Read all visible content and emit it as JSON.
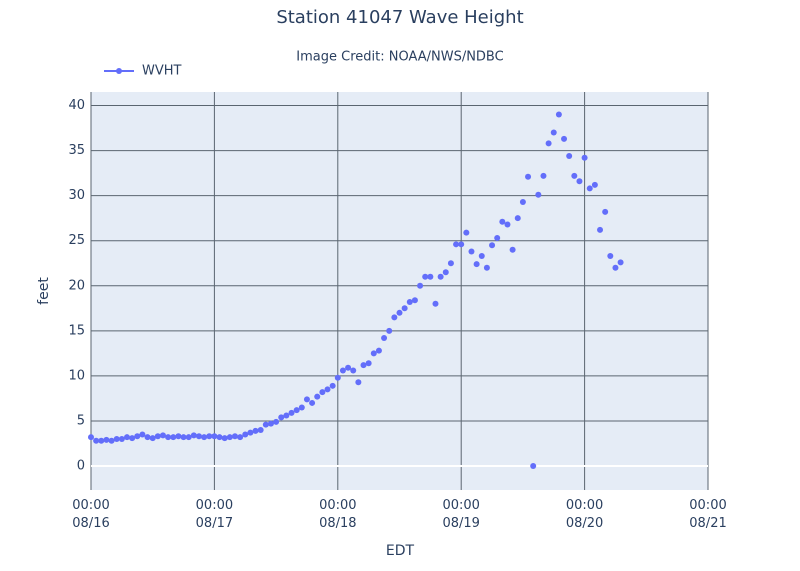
{
  "chart_data": {
    "type": "scatter",
    "title": "Station 41047 Wave Height",
    "subtitle": "Image Credit: NOAA/NWS/NDBC",
    "x_label": "EDT",
    "y_label": "feet",
    "x": [
      "08/16 00:00",
      "08/16 01:00",
      "08/16 02:00",
      "08/16 03:00",
      "08/16 04:00",
      "08/16 05:00",
      "08/16 06:00",
      "08/16 07:00",
      "08/16 08:00",
      "08/16 09:00",
      "08/16 10:00",
      "08/16 11:00",
      "08/16 12:00",
      "08/16 13:00",
      "08/16 14:00",
      "08/16 15:00",
      "08/16 16:00",
      "08/16 17:00",
      "08/16 18:00",
      "08/16 19:00",
      "08/16 20:00",
      "08/16 21:00",
      "08/16 22:00",
      "08/16 23:00",
      "08/17 00:00",
      "08/17 01:00",
      "08/17 02:00",
      "08/17 03:00",
      "08/17 04:00",
      "08/17 05:00",
      "08/17 06:00",
      "08/17 07:00",
      "08/17 08:00",
      "08/17 09:00",
      "08/17 10:00",
      "08/17 11:00",
      "08/17 12:00",
      "08/17 13:00",
      "08/17 14:00",
      "08/17 15:00",
      "08/17 16:00",
      "08/17 17:00",
      "08/17 18:00",
      "08/17 19:00",
      "08/17 20:00",
      "08/17 21:00",
      "08/17 22:00",
      "08/17 23:00",
      "08/18 00:00",
      "08/18 01:00",
      "08/18 02:00",
      "08/18 03:00",
      "08/18 04:00",
      "08/18 05:00",
      "08/18 06:00",
      "08/18 07:00",
      "08/18 08:00",
      "08/18 09:00",
      "08/18 10:00",
      "08/18 11:00",
      "08/18 12:00",
      "08/18 13:00",
      "08/18 14:00",
      "08/18 15:00",
      "08/18 16:00",
      "08/18 17:00",
      "08/18 18:00",
      "08/18 19:00",
      "08/18 20:00",
      "08/18 21:00",
      "08/18 22:00",
      "08/18 23:00",
      "08/19 00:00",
      "08/19 01:00",
      "08/19 02:00",
      "08/19 03:00",
      "08/19 04:00",
      "08/19 05:00",
      "08/19 06:00",
      "08/19 07:00",
      "08/19 08:00",
      "08/19 09:00",
      "08/19 10:00",
      "08/19 11:00",
      "08/19 12:00",
      "08/19 13:00",
      "08/19 14:00",
      "08/19 15:00",
      "08/19 16:00",
      "08/19 17:00",
      "08/19 18:00",
      "08/19 19:00",
      "08/19 20:00",
      "08/19 21:00",
      "08/19 22:00",
      "08/19 23:00",
      "08/20 00:00",
      "08/20 01:00",
      "08/20 02:00",
      "08/20 03:00",
      "08/20 04:00",
      "08/20 05:00",
      "08/20 06:00",
      "08/20 07:00"
    ],
    "series": [
      {
        "name": "WVHT",
        "color": "#636efa",
        "values": [
          3.2,
          2.8,
          2.8,
          2.9,
          2.8,
          3.0,
          3.0,
          3.2,
          3.1,
          3.3,
          3.5,
          3.2,
          3.1,
          3.3,
          3.4,
          3.2,
          3.2,
          3.3,
          3.2,
          3.2,
          3.4,
          3.3,
          3.2,
          3.3,
          3.3,
          3.2,
          3.1,
          3.2,
          3.3,
          3.2,
          3.5,
          3.7,
          3.9,
          4.0,
          4.6,
          4.7,
          4.9,
          5.4,
          5.6,
          5.9,
          6.2,
          6.5,
          7.4,
          7.0,
          7.7,
          8.2,
          8.5,
          8.9,
          9.8,
          10.6,
          10.9,
          10.6,
          9.3,
          11.2,
          11.4,
          12.5,
          12.8,
          14.2,
          15.0,
          16.5,
          17.0,
          17.5,
          18.2,
          18.4,
          20.0,
          21.0,
          21.0,
          18.0,
          21.0,
          21.5,
          22.5,
          24.6,
          24.6,
          25.9,
          23.8,
          22.4,
          23.3,
          22.0,
          24.5,
          25.3,
          27.1,
          26.8,
          24.0,
          27.5,
          29.3,
          32.1,
          0,
          30.1,
          32.2,
          35.8,
          37.0,
          39.0,
          36.3,
          34.4,
          32.2,
          31.6,
          34.2,
          30.8,
          31.2,
          26.2,
          28.2,
          23.3,
          22.0,
          22.6
        ]
      }
    ],
    "xlim": [
      "08/16 00:00",
      "08/21 00:00"
    ],
    "xticks": [
      {
        "value": "08/16 00:00",
        "label": "00:00\n08/16"
      },
      {
        "value": "08/17 00:00",
        "label": "00:00\n08/17"
      },
      {
        "value": "08/18 00:00",
        "label": "00:00\n08/18"
      },
      {
        "value": "08/19 00:00",
        "label": "00:00\n08/19"
      },
      {
        "value": "08/20 00:00",
        "label": "00:00\n08/20"
      },
      {
        "value": "08/21 00:00",
        "label": "00:00\n08/21"
      }
    ],
    "ylim": [
      -2.66,
      41.5
    ],
    "yticks": [
      0,
      5,
      10,
      15,
      20,
      25,
      30,
      35,
      40
    ],
    "grid": true,
    "zeroline": true,
    "legend": "top-left"
  }
}
